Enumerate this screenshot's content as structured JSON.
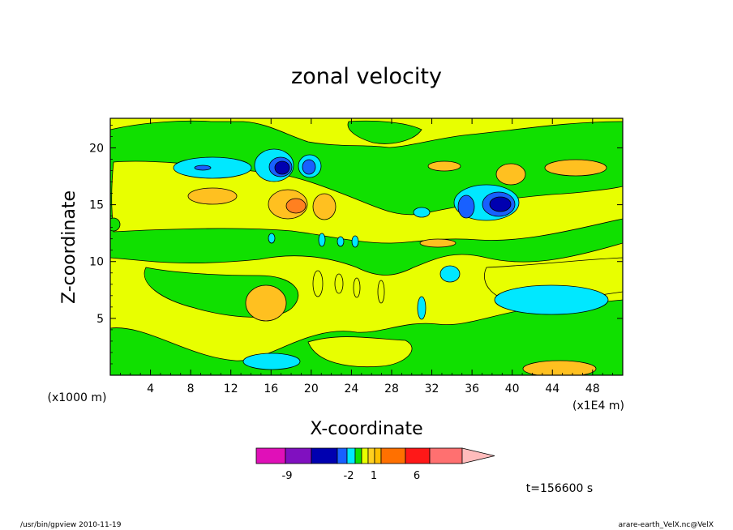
{
  "chart_data": {
    "type": "heatmap",
    "title": "zonal velocity",
    "xlabel": "X-coordinate",
    "ylabel": "Z-coordinate",
    "x_unit": "(x1E4 m)",
    "y_unit": "(x1000 m)",
    "x_ticks": [
      "4",
      "8",
      "12",
      "16",
      "20",
      "24",
      "28",
      "32",
      "36",
      "40",
      "44",
      "48"
    ],
    "y_ticks": [
      "5",
      "10",
      "15",
      "20"
    ],
    "xlim": [
      0,
      51
    ],
    "ylim": [
      0,
      22.6
    ],
    "colorbar": {
      "colors": [
        "#e010b8",
        "#8010c0",
        "#0000b0",
        "#1860ff",
        "#00e8ff",
        "#10e000",
        "#e8ff00",
        "#ffd020",
        "#ffc000",
        "#ff7000",
        "#ff1818",
        "#ff7070",
        "#ffbcbc"
      ],
      "labels": [
        "-9",
        "-2",
        "1",
        "6"
      ]
    },
    "time_label": "t=156600 s",
    "footer_left": "/usr/bin/gpview   2010-11-19",
    "footer_right": "arare-earth_VelX.nc@VelX",
    "background_color": "#e8ff00",
    "colors": {
      "positive_weak": "#e8ff00",
      "positive_strong": "#ffc020",
      "near_zero": "#10e000",
      "negative_weak": "#00e8ff",
      "negative_mid": "#1860ff",
      "negative_strong": "#0000b0"
    }
  }
}
